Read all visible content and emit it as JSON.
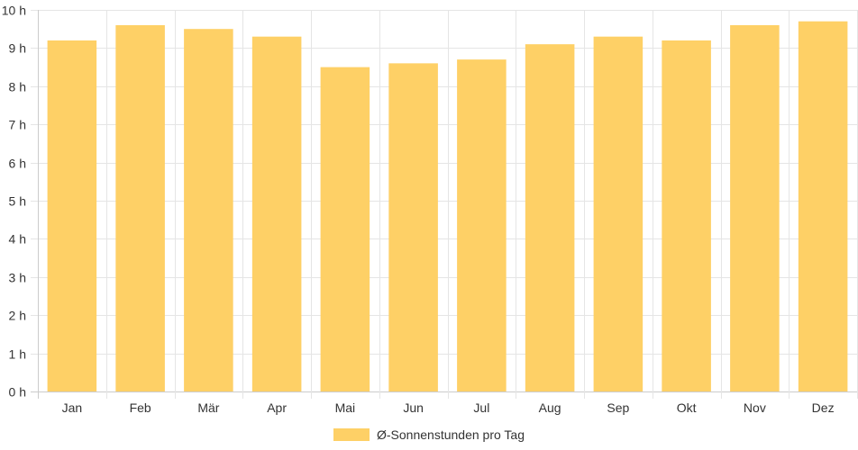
{
  "chart_data": {
    "type": "bar",
    "categories": [
      "Jan",
      "Feb",
      "Mär",
      "Apr",
      "Mai",
      "Jun",
      "Jul",
      "Aug",
      "Sep",
      "Okt",
      "Nov",
      "Dez"
    ],
    "series": [
      {
        "name": "Ø-Sonnenstunden pro Tag",
        "values": [
          9.2,
          9.6,
          9.5,
          9.3,
          8.5,
          8.6,
          8.7,
          9.1,
          9.3,
          9.2,
          9.6,
          9.7
        ]
      }
    ],
    "ylim": [
      0,
      10
    ],
    "yticks": [
      0,
      1,
      2,
      3,
      4,
      5,
      6,
      7,
      8,
      9,
      10
    ],
    "ytick_suffix": " h",
    "grid": true,
    "legend_position": "bottom",
    "colors": {
      "bar": "#fed066",
      "grid": "#e5e5e5",
      "axis": "#cccccc",
      "text": "#333333"
    }
  }
}
